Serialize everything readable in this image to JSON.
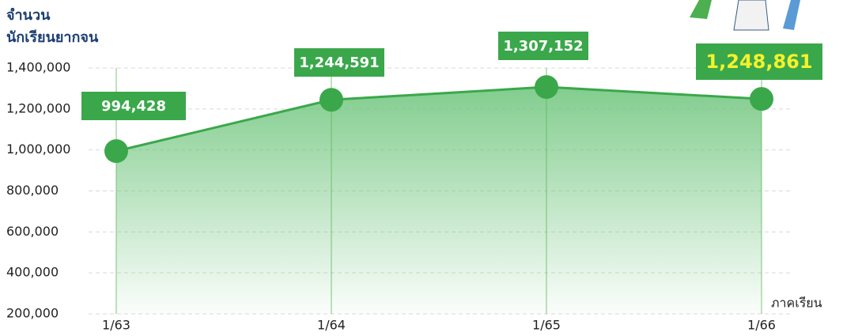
{
  "chart_data": {
    "type": "area",
    "y_title_lines": [
      "จำนวน",
      "นักเรียนยากจน"
    ],
    "x_title": "ภาคเรียน",
    "categories": [
      "1/63",
      "1/64",
      "1/65",
      "1/66"
    ],
    "values": [
      994428,
      1244591,
      1307152,
      1248861
    ],
    "value_labels": [
      "994,428",
      "1,244,591",
      "1,307,152",
      "1,248,861"
    ],
    "color": "#3aa84a",
    "label_box_color": "#3aa84a",
    "label_text_color": "#ffffff",
    "highlight_label_color": "#f4f22c",
    "ylim": [
      200000,
      1400000
    ],
    "yticks": [
      {
        "value": 200000,
        "label": "200,000"
      },
      {
        "value": 400000,
        "label": "400,000"
      },
      {
        "value": 600000,
        "label": "600,000"
      },
      {
        "value": 800000,
        "label": "800,000"
      },
      {
        "value": 1000000,
        "label": "1,000,000"
      },
      {
        "value": 1200000,
        "label": "1,200,000"
      },
      {
        "value": 1400000,
        "label": "1,400,000"
      }
    ],
    "grid": true
  }
}
